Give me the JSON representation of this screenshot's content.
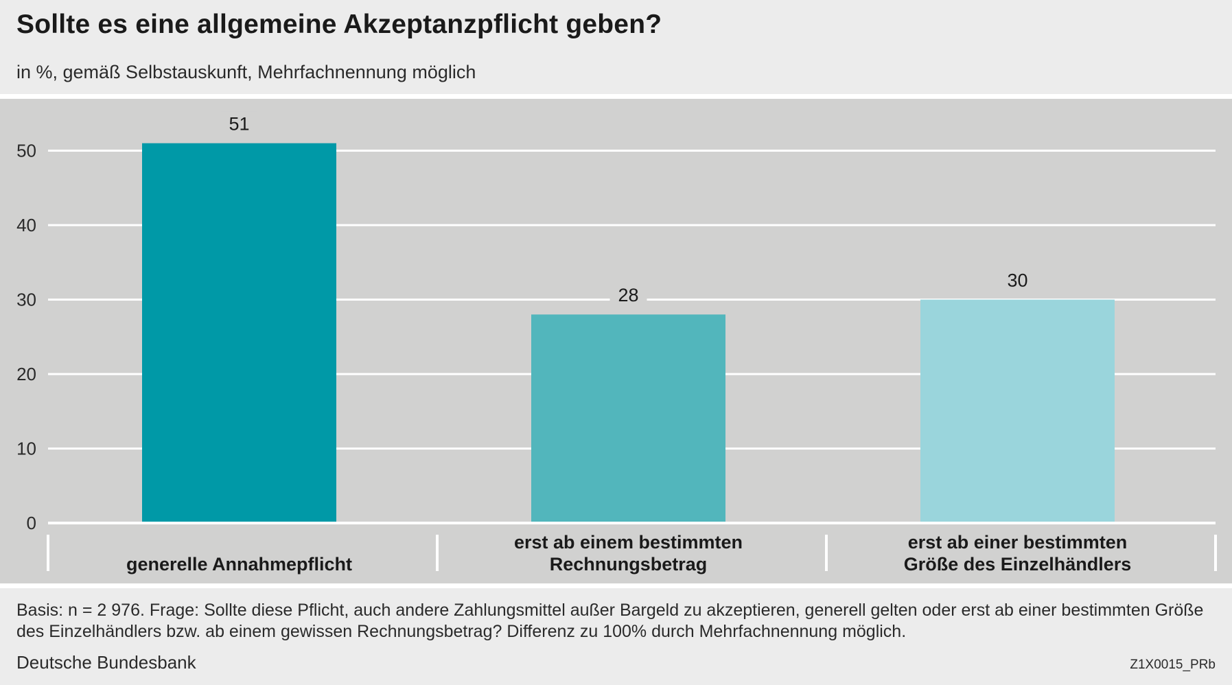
{
  "title": "Sollte es eine allgemeine Akzeptanzpflicht geben?",
  "subtitle": "in %, gemäß Selbstauskunft, Mehrfachnennung möglich",
  "footnote": "Basis: n = 2 976. Frage: Sollte diese Pflicht, auch andere Zahlungsmittel außer Bargeld zu akzeptieren, generell gelten oder erst ab einer bestimmten Größe des Einzelhändlers bzw. ab einem gewissen Rechnungsbetrag? Differenz zu 100% durch Mehrfachnennung möglich.",
  "source": "Deutsche Bundesbank",
  "code": "Z1X0015_PRb",
  "colors": {
    "background": "#ececec",
    "plot_background": "#d1d1d0",
    "gridline": "#ffffff",
    "bars": [
      "#0099a7",
      "#52b6bc",
      "#9ad5dc"
    ]
  },
  "chart_data": {
    "type": "bar",
    "categories": [
      [
        "generelle Annahmepflicht"
      ],
      [
        "erst ab einem bestimmten",
        "Rechnungsbetrag"
      ],
      [
        "erst ab einer bestimmten",
        "Größe des Einzelhändlers"
      ]
    ],
    "values": [
      51,
      28,
      30
    ],
    "value_labels": [
      "51",
      "28",
      "30"
    ],
    "ylim": [
      0,
      55
    ],
    "yticks": [
      0,
      10,
      20,
      30,
      40,
      50
    ],
    "grid": true,
    "legend": false
  }
}
